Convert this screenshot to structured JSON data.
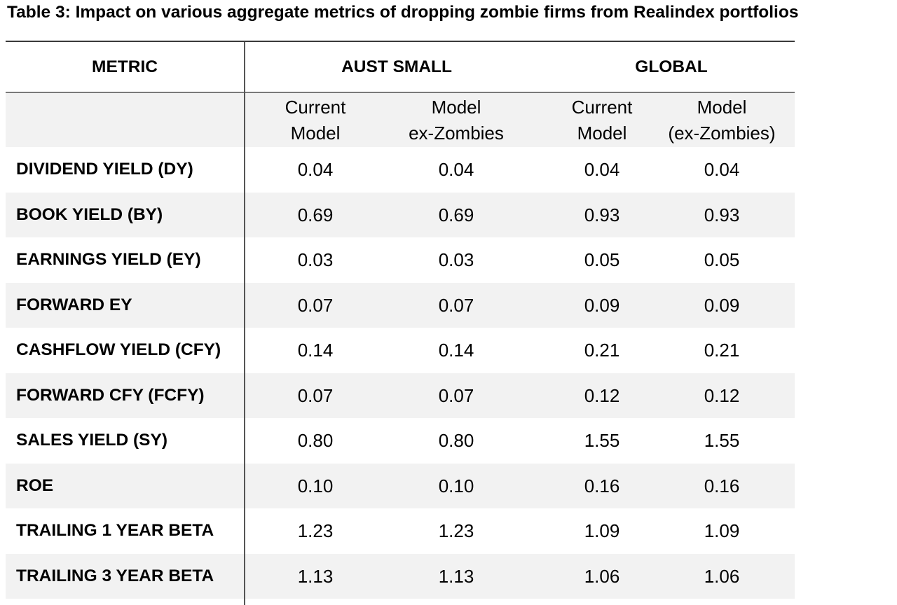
{
  "title": "Table 3: Impact on various aggregate metrics of dropping zombie firms from Realindex portfolios",
  "table": {
    "headers": {
      "metric": "METRIC",
      "group1": "AUST SMALL",
      "group2": "GLOBAL"
    },
    "subheaders": [
      {
        "line1": "Current",
        "line2": "Model"
      },
      {
        "line1": "Model",
        "line2": "ex-Zombies"
      },
      {
        "line1": "Current",
        "line2": "Model"
      },
      {
        "line1": "Model",
        "line2": "(ex-Zombies)"
      }
    ],
    "rows": [
      {
        "metric": "DIVIDEND YIELD (DY)",
        "values": [
          "0.04",
          "0.04",
          "0.04",
          "0.04"
        ]
      },
      {
        "metric": "BOOK YIELD (BY)",
        "values": [
          "0.69",
          "0.69",
          "0.93",
          "0.93"
        ]
      },
      {
        "metric": "EARNINGS YIELD (EY)",
        "values": [
          "0.03",
          "0.03",
          "0.05",
          "0.05"
        ]
      },
      {
        "metric": "FORWARD EY",
        "values": [
          "0.07",
          "0.07",
          "0.09",
          "0.09"
        ]
      },
      {
        "metric": "CASHFLOW YIELD (CFY)",
        "values": [
          "0.14",
          "0.14",
          "0.21",
          "0.21"
        ]
      },
      {
        "metric": "FORWARD CFY (FCFY)",
        "values": [
          "0.07",
          "0.07",
          "0.12",
          "0.12"
        ]
      },
      {
        "metric": "SALES YIELD (SY)",
        "values": [
          "0.80",
          "0.80",
          "1.55",
          "1.55"
        ]
      },
      {
        "metric": "ROE",
        "values": [
          "0.10",
          "0.10",
          "0.16",
          "0.16"
        ]
      },
      {
        "metric": "TRAILING 1 YEAR BETA",
        "values": [
          "1.23",
          "1.23",
          "1.09",
          "1.09"
        ]
      },
      {
        "metric": "TRAILING 3 YEAR BETA",
        "values": [
          "1.13",
          "1.13",
          "1.06",
          "1.06"
        ]
      }
    ]
  }
}
